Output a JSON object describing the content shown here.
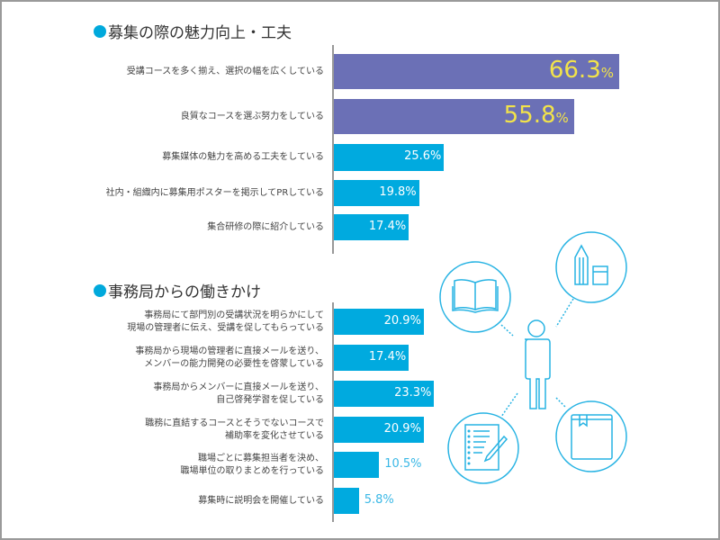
{
  "chart_data": [
    {
      "type": "bar",
      "orientation": "horizontal",
      "title": "募集の際の魅力向上・工夫",
      "categories": [
        "受講コースを多く揃え、選択の幅を広くしている",
        "良質なコースを選ぶ努力をしている",
        "募集媒体の魅力を高める工夫をしている",
        "社内・組織内に募集用ポスターを掲示してPRしている",
        "集合研修の際に紹介している"
      ],
      "values": [
        66.3,
        55.8,
        25.6,
        19.8,
        17.4
      ],
      "labels": [
        "66.3",
        "55.8",
        "25.6%",
        "19.8%",
        "17.4%"
      ],
      "unit": "%",
      "colors": [
        "#6b70b6",
        "#6b70b6",
        "#00aadf",
        "#00aadf",
        "#00aadf"
      ],
      "xlim": [
        0,
        66.3
      ]
    },
    {
      "type": "bar",
      "orientation": "horizontal",
      "title": "事務局からの働きかけ",
      "categories": [
        "事務局にて部門別の受講状況を明らかにして\n現場の管理者に伝え、受講を促してもらっている",
        "事務局から現場の管理者に直接メールを送り、\nメンバーの能力開発の必要性を啓蒙している",
        "事務局からメンバーに直接メールを送り、\n自己啓発学習を促している",
        "職務に直結するコースとそうでないコースで\n補助率を変化させている",
        "職場ごとに募集担当者を決め、\n職場単位の取りまとめを行っている",
        "募集時に説明会を開催している"
      ],
      "values": [
        20.9,
        17.4,
        23.3,
        20.9,
        10.5,
        5.8
      ],
      "labels": [
        "20.9%",
        "17.4%",
        "23.3%",
        "20.9%",
        "10.5%",
        "5.8%"
      ],
      "unit": "%",
      "colors": [
        "#00aadf",
        "#00aadf",
        "#00aadf",
        "#00aadf",
        "#00aadf",
        "#00aadf"
      ],
      "xlim": [
        0,
        66.3
      ]
    }
  ]
}
